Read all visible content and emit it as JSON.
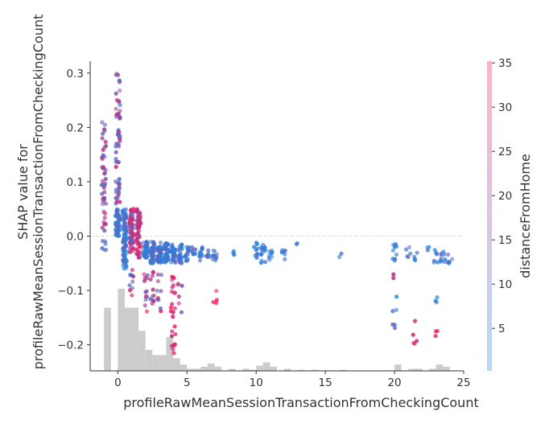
{
  "chart_data": {
    "type": "scatter",
    "title": "",
    "xlabel": "profileRawMeanSessionTransactionFromCheckingCount",
    "ylabel": "SHAP value for\nprofileRawMeanSessionTransactionFromCheckingCount",
    "colorbar_label": "distanceFromHome",
    "xlim": [
      -2,
      25
    ],
    "ylim": [
      -0.248,
      0.322
    ],
    "x_ticks": [
      0,
      5,
      10,
      15,
      20,
      25
    ],
    "y_ticks": [
      -0.2,
      -0.1,
      0.0,
      0.1,
      0.2,
      0.3
    ],
    "colorbar_range": [
      0.2,
      35.2
    ],
    "colorbar_ticks": [
      5,
      10,
      15,
      20,
      25,
      30,
      35
    ],
    "colors": {
      "low": "#1e88e5",
      "high": "#ff0d57",
      "histogram": "#cccccc",
      "zero_line": "#999999"
    },
    "histogram": {
      "bin_width": 0.5,
      "bins": [
        [
          -1.0,
          0.6
        ],
        [
          0.0,
          0.78
        ],
        [
          0.5,
          0.6
        ],
        [
          1.0,
          0.6
        ],
        [
          1.5,
          0.38
        ],
        [
          2.0,
          0.2
        ],
        [
          2.5,
          0.15
        ],
        [
          3.0,
          0.15
        ],
        [
          3.5,
          0.32
        ],
        [
          4.0,
          0.12
        ],
        [
          4.5,
          0.06
        ],
        [
          5.0,
          0.02
        ],
        [
          5.5,
          0.02
        ],
        [
          6.0,
          0.04
        ],
        [
          6.5,
          0.07
        ],
        [
          7.0,
          0.04
        ],
        [
          8.0,
          0.02
        ],
        [
          9.0,
          0.02
        ],
        [
          9.5,
          0.01
        ],
        [
          10.0,
          0.05
        ],
        [
          10.5,
          0.08
        ],
        [
          11.0,
          0.04
        ],
        [
          12.0,
          0.02
        ],
        [
          13.0,
          0.01
        ],
        [
          14.0,
          0.01
        ],
        [
          16.0,
          0.01
        ],
        [
          20.0,
          0.06
        ],
        [
          21.0,
          0.02
        ],
        [
          21.5,
          0.02
        ],
        [
          22.5,
          0.02
        ],
        [
          23.0,
          0.06
        ],
        [
          23.5,
          0.04
        ]
      ]
    },
    "clusters": [
      {
        "x": -1.0,
        "y": [
          0.01,
          0.21
        ],
        "n": 45,
        "c": [
          0.15,
          0.8
        ]
      },
      {
        "x": -1.0,
        "y": [
          -0.03,
          0.005
        ],
        "n": 6,
        "c": [
          0.1,
          0.5
        ]
      },
      {
        "x": 0.0,
        "y": [
          0.06,
          0.3
        ],
        "n": 60,
        "c": [
          0.1,
          0.8
        ]
      },
      {
        "x": 0.0,
        "y": [
          0.0,
          0.05
        ],
        "n": 60,
        "c": [
          0.0,
          0.3
        ]
      },
      {
        "x": 0.5,
        "y": [
          -0.06,
          0.05
        ],
        "n": 80,
        "c": [
          0.0,
          0.3
        ]
      },
      {
        "x": 1.0,
        "y": [
          -0.03,
          0.05
        ],
        "n": 60,
        "c": [
          0.3,
          0.95
        ]
      },
      {
        "x": 1.0,
        "y": [
          -0.11,
          -0.06
        ],
        "n": 10,
        "c": [
          0.0,
          0.9
        ]
      },
      {
        "x": 1.5,
        "y": [
          -0.04,
          0.05
        ],
        "n": 50,
        "c": [
          0.5,
          1.0
        ]
      },
      {
        "x": 2.0,
        "y": [
          -0.04,
          -0.01
        ],
        "n": 40,
        "c": [
          0.0,
          0.3
        ]
      },
      {
        "x": 2.0,
        "y": [
          -0.14,
          -0.06
        ],
        "n": 12,
        "c": [
          0.2,
          0.9
        ]
      },
      {
        "x": 2.5,
        "y": [
          -0.05,
          -0.01
        ],
        "n": 40,
        "c": [
          0.0,
          0.3
        ]
      },
      {
        "x": 2.5,
        "y": [
          -0.13,
          -0.06
        ],
        "n": 12,
        "c": [
          0.2,
          0.9
        ]
      },
      {
        "x": 3.0,
        "y": [
          -0.05,
          -0.01
        ],
        "n": 50,
        "c": [
          0.0,
          0.3
        ]
      },
      {
        "x": 3.0,
        "y": [
          -0.14,
          -0.07
        ],
        "n": 10,
        "c": [
          0.2,
          0.9
        ]
      },
      {
        "x": 3.5,
        "y": [
          -0.05,
          -0.01
        ],
        "n": 40,
        "c": [
          0.0,
          0.3
        ]
      },
      {
        "x": 4.0,
        "y": [
          -0.22,
          -0.07
        ],
        "n": 25,
        "c": [
          0.7,
          1.0
        ]
      },
      {
        "x": 4.0,
        "y": [
          -0.05,
          -0.015
        ],
        "n": 30,
        "c": [
          0.0,
          0.3
        ]
      },
      {
        "x": 4.5,
        "y": [
          -0.05,
          -0.015
        ],
        "n": 25,
        "c": [
          0.0,
          0.3
        ]
      },
      {
        "x": 4.5,
        "y": [
          -0.15,
          -0.08
        ],
        "n": 6,
        "c": [
          0.1,
          0.9
        ]
      },
      {
        "x": 5.0,
        "y": [
          -0.05,
          -0.02
        ],
        "n": 15,
        "c": [
          0.0,
          0.3
        ]
      },
      {
        "x": 5.5,
        "y": [
          -0.04,
          -0.02
        ],
        "n": 8,
        "c": [
          0.0,
          0.3
        ]
      },
      {
        "x": 6.0,
        "y": [
          -0.045,
          -0.02
        ],
        "n": 12,
        "c": [
          0.0,
          0.3
        ]
      },
      {
        "x": 6.5,
        "y": [
          -0.04,
          -0.025
        ],
        "n": 8,
        "c": [
          0.0,
          0.4
        ]
      },
      {
        "x": 7.0,
        "y": [
          -0.045,
          -0.02
        ],
        "n": 10,
        "c": [
          0.0,
          0.3
        ]
      },
      {
        "x": 7.0,
        "y": [
          -0.135,
          -0.085
        ],
        "n": 4,
        "c": [
          0.85,
          1.0
        ]
      },
      {
        "x": 8.5,
        "y": [
          -0.035,
          -0.025
        ],
        "n": 4,
        "c": [
          0.0,
          0.2
        ]
      },
      {
        "x": 10.0,
        "y": [
          -0.04,
          -0.01
        ],
        "n": 10,
        "c": [
          0.0,
          0.2
        ]
      },
      {
        "x": 10.5,
        "y": [
          -0.05,
          -0.015
        ],
        "n": 15,
        "c": [
          0.0,
          0.2
        ]
      },
      {
        "x": 11.0,
        "y": [
          -0.05,
          -0.025
        ],
        "n": 8,
        "c": [
          0.0,
          0.2
        ]
      },
      {
        "x": 12.0,
        "y": [
          -0.045,
          -0.015
        ],
        "n": 6,
        "c": [
          0.0,
          0.2
        ]
      },
      {
        "x": 13.0,
        "y": [
          -0.02,
          -0.01
        ],
        "n": 2,
        "c": [
          0.0,
          0.2
        ]
      },
      {
        "x": 16.0,
        "y": [
          -0.04,
          -0.03
        ],
        "n": 2,
        "c": [
          0.0,
          0.2
        ]
      },
      {
        "x": 20.0,
        "y": [
          -0.05,
          -0.015
        ],
        "n": 10,
        "c": [
          0.0,
          0.2
        ]
      },
      {
        "x": 20.0,
        "y": [
          -0.17,
          -0.11
        ],
        "n": 6,
        "c": [
          0.0,
          0.3
        ]
      },
      {
        "x": 20.0,
        "y": [
          -0.08,
          -0.07
        ],
        "n": 2,
        "c": [
          0.6,
          0.8
        ]
      },
      {
        "x": 21.0,
        "y": [
          -0.045,
          -0.015
        ],
        "n": 5,
        "c": [
          0.0,
          0.3
        ]
      },
      {
        "x": 21.5,
        "y": [
          -0.045,
          -0.025
        ],
        "n": 4,
        "c": [
          0.0,
          0.3
        ]
      },
      {
        "x": 21.5,
        "y": [
          -0.22,
          -0.14
        ],
        "n": 5,
        "c": [
          0.7,
          0.9
        ]
      },
      {
        "x": 22.5,
        "y": [
          -0.035,
          -0.02
        ],
        "n": 3,
        "c": [
          0.0,
          0.3
        ]
      },
      {
        "x": 23.0,
        "y": [
          -0.05,
          -0.025
        ],
        "n": 6,
        "c": [
          0.0,
          0.3
        ]
      },
      {
        "x": 23.0,
        "y": [
          -0.13,
          -0.1
        ],
        "n": 3,
        "c": [
          0.0,
          0.2
        ]
      },
      {
        "x": 23.0,
        "y": [
          -0.19,
          -0.16
        ],
        "n": 3,
        "c": [
          0.85,
          1.0
        ]
      },
      {
        "x": 23.5,
        "y": [
          -0.05,
          -0.025
        ],
        "n": 8,
        "c": [
          0.0,
          0.3
        ]
      },
      {
        "x": 24.0,
        "y": [
          -0.05,
          -0.03
        ],
        "n": 6,
        "c": [
          0.0,
          0.3
        ]
      }
    ]
  }
}
